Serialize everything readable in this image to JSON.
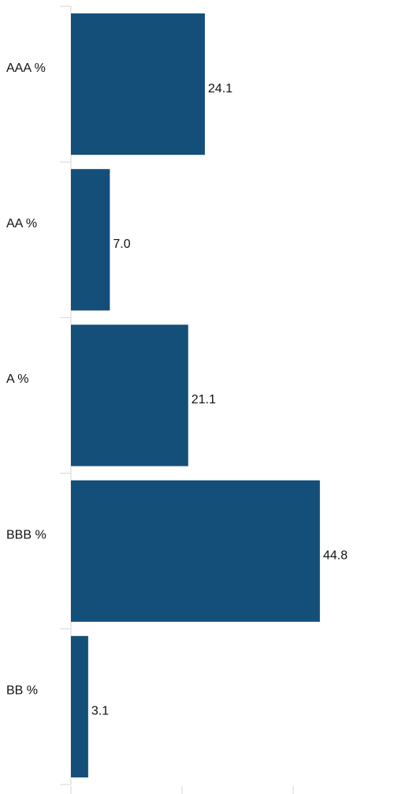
{
  "chart_data": {
    "type": "bar",
    "orientation": "horizontal",
    "categories": [
      "AAA %",
      "AA %",
      "A %",
      "BBB %",
      "BB %"
    ],
    "values": [
      24.1,
      7.0,
      21.1,
      44.8,
      3.1
    ],
    "value_labels": [
      "24.1",
      "7.0",
      "21.1",
      "44.8",
      "3.1"
    ],
    "title": "",
    "xlabel": "",
    "ylabel": "",
    "xlim": [
      0,
      60
    ],
    "grid": false,
    "legend": "none",
    "bar_color": "#134f79",
    "axis_color": "#d4d4d4"
  }
}
